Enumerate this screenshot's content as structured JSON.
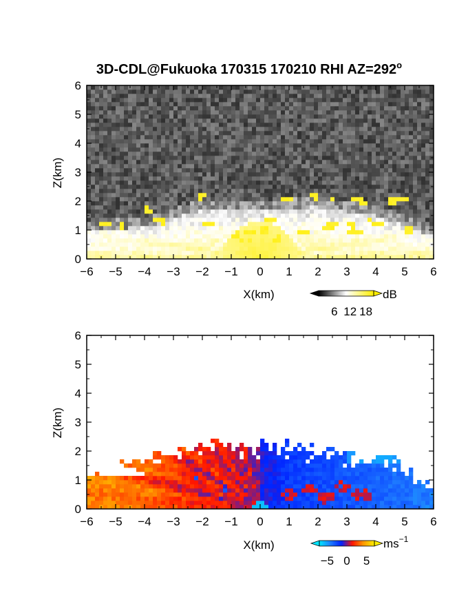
{
  "chart_data": [
    {
      "type": "heatmap",
      "title": "3D-CDL@Fukuoka 170315 170210 RHI AZ=292",
      "title_sup": "o",
      "quantity": "backscatter intensity",
      "xlabel": "X(km)",
      "ylabel": "Z(km)",
      "xlim": [
        -6,
        6
      ],
      "ylim": [
        0,
        6
      ],
      "xticks": [
        "−6",
        "−5",
        "−4",
        "−3",
        "−2",
        "−1",
        "0",
        "1",
        "2",
        "3",
        "4",
        "5",
        "6"
      ],
      "yticks": [
        "0",
        "1",
        "2",
        "3",
        "4",
        "5",
        "6"
      ],
      "colorbar": {
        "unit": "dB",
        "ticks": [
          "6",
          "12",
          "18"
        ],
        "range": [
          0,
          21
        ],
        "colors": [
          "#000000",
          "#ffffff",
          "#ffee00"
        ]
      },
      "structures": {
        "noise_background_dB": 2,
        "bright_fan_center_x_km": 0.0,
        "bright_fan_max_height_km": 1.3,
        "boundary_layer_top_km": [
          [
            -6,
            1.2
          ],
          [
            -4,
            1.3
          ],
          [
            -2,
            1.9
          ],
          [
            0,
            1.9
          ],
          [
            2,
            2.0
          ],
          [
            4,
            1.7
          ],
          [
            6,
            1.0
          ]
        ],
        "high_echo_dB": 19,
        "high_echo_patches_km": [
          [
            -5.4,
            1.2
          ],
          [
            -4.8,
            1.15
          ],
          [
            -3.9,
            1.7
          ],
          [
            -3.5,
            1.3
          ],
          [
            -3.3,
            1.2
          ],
          [
            -2.0,
            2.15
          ],
          [
            -1.8,
            1.25
          ],
          [
            -0.8,
            0.85
          ],
          [
            -0.5,
            0.6
          ],
          [
            -0.3,
            0.95
          ],
          [
            0.1,
            1.0
          ],
          [
            0.3,
            1.35
          ],
          [
            0.6,
            0.7
          ],
          [
            0.9,
            2.1
          ],
          [
            1.5,
            0.9
          ],
          [
            1.9,
            2.15
          ],
          [
            2.3,
            1.05
          ],
          [
            2.5,
            1.25
          ],
          [
            2.6,
            2.05
          ],
          [
            3.0,
            0.9
          ],
          [
            3.2,
            1.15
          ],
          [
            3.4,
            0.95
          ],
          [
            3.4,
            2.1
          ],
          [
            3.6,
            2.0
          ],
          [
            3.9,
            1.3
          ],
          [
            4.1,
            1.25
          ],
          [
            4.6,
            2.0
          ],
          [
            4.9,
            2.05
          ],
          [
            5.1,
            1.0
          ]
        ]
      }
    },
    {
      "type": "heatmap",
      "quantity": "radial velocity",
      "xlabel": "X(km)",
      "ylabel": "Z(km)",
      "xlim": [
        -6,
        6
      ],
      "ylim": [
        0,
        6
      ],
      "xticks": [
        "−6",
        "−5",
        "−4",
        "−3",
        "−2",
        "−1",
        "0",
        "1",
        "2",
        "3",
        "4",
        "5",
        "6"
      ],
      "yticks": [
        "0",
        "1",
        "2",
        "3",
        "4",
        "5",
        "6"
      ],
      "colorbar": {
        "unit": "ms",
        "unit_sup": "−1",
        "ticks": [
          "−5",
          "0",
          "5"
        ],
        "range": [
          -7,
          7
        ],
        "colors": [
          "#00e5ff",
          "#1f7dff",
          "#0022ff",
          "#ff1500",
          "#ff9900",
          "#ffee00"
        ]
      },
      "structures": {
        "sign_change_x_km": 0.0,
        "left_side_ms": [
          [
            -6.0,
            3.5
          ],
          [
            -4.0,
            3.0
          ],
          [
            -2.5,
            1.6
          ],
          [
            -1.0,
            1.0
          ],
          [
            -0.3,
            0.4
          ]
        ],
        "right_side_ms": [
          [
            0.3,
            -1.2
          ],
          [
            1.0,
            -2.2
          ],
          [
            3.0,
            -3.0
          ],
          [
            5.0,
            -3.8
          ],
          [
            6.0,
            -4.2
          ]
        ],
        "upper_edge_right_ms": -5.5,
        "echo_top_km": [
          [
            -6,
            1.4
          ],
          [
            -4.5,
            1.6
          ],
          [
            -3,
            2.0
          ],
          [
            -1.5,
            2.3
          ],
          [
            0,
            2.2
          ],
          [
            1.5,
            2.2
          ],
          [
            3,
            2.0
          ],
          [
            4.5,
            1.7
          ],
          [
            6,
            1.1
          ]
        ],
        "red_blobs_right_km": [
          [
            1.0,
            0.5
          ],
          [
            1.7,
            0.7
          ],
          [
            2.3,
            0.4
          ],
          [
            2.8,
            0.75
          ],
          [
            3.3,
            0.55
          ],
          [
            3.7,
            0.45
          ]
        ],
        "blue_spots_left_km": [
          [
            -2.2,
            1.1
          ],
          [
            -1.2,
            0.6
          ],
          [
            -3.0,
            1.0
          ]
        ]
      }
    }
  ]
}
